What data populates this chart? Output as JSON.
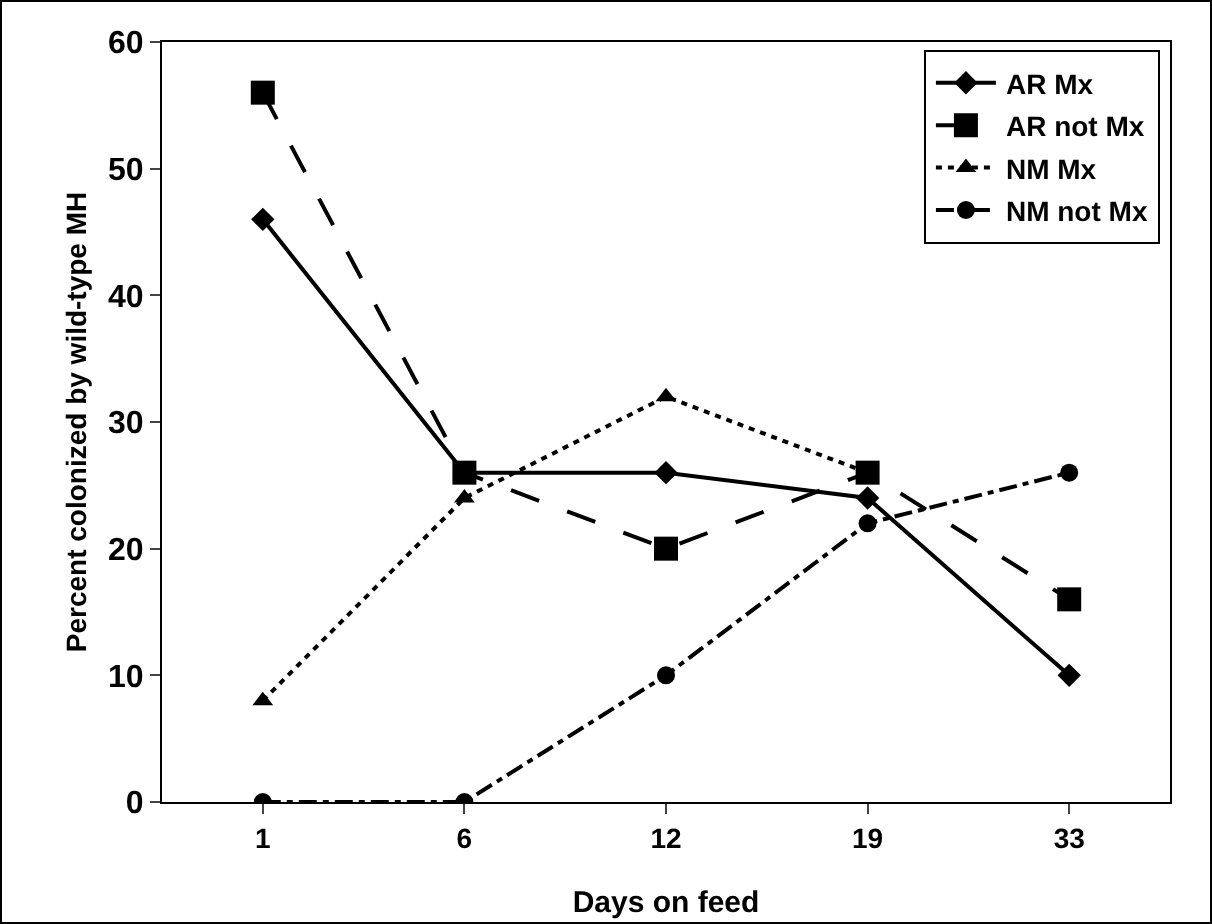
{
  "chart_data": {
    "type": "line",
    "xlabel": "Days on feed",
    "ylabel": "Percent colonized by wild-type MH",
    "categories": [
      "1",
      "6",
      "12",
      "19",
      "33"
    ],
    "series": [
      {
        "name": "AR Mx",
        "color": "#000000",
        "marker": "diamond",
        "line_style": "solid",
        "values": [
          46,
          26,
          26,
          24,
          10
        ]
      },
      {
        "name": "AR not Mx",
        "color": "#000000",
        "marker": "square",
        "line_style": "dashed",
        "values": [
          56,
          26,
          20,
          26,
          16
        ]
      },
      {
        "name": "NM Mx",
        "color": "#000000",
        "marker": "triangle",
        "line_style": "dotted",
        "values": [
          8,
          24,
          32,
          26,
          null
        ]
      },
      {
        "name": "NM not Mx",
        "color": "#000000",
        "marker": "circle",
        "line_style": "dashdot",
        "values": [
          0,
          0,
          10,
          22,
          26
        ]
      }
    ],
    "ylim": [
      0,
      60
    ],
    "yticks": [
      0,
      10,
      20,
      30,
      40,
      50,
      60
    ],
    "grid": false,
    "legend": "top right"
  }
}
